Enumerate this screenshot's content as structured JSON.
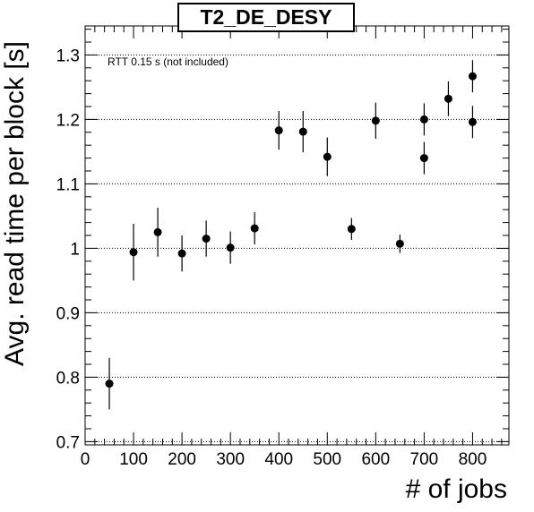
{
  "chart_data": {
    "type": "scatter",
    "title": "T2_DE_DESY",
    "xlabel": "# of jobs",
    "ylabel": "Avg. read time per block [s]",
    "annotation": "RTT 0.15 s (not included)",
    "xlim": [
      0,
      875
    ],
    "ylim": [
      0.695,
      1.345
    ],
    "x_ticks": [
      0,
      100,
      200,
      300,
      400,
      500,
      600,
      700,
      800
    ],
    "y_ticks": [
      0.7,
      0.8,
      0.9,
      1.0,
      1.1,
      1.2,
      1.3
    ],
    "y_tick_labels": [
      "0.7",
      "0.8",
      "0.9",
      "1",
      "1.1",
      "1.2",
      "1.3"
    ],
    "grid": "horizontal dotted at major y ticks",
    "marker_color": "#000000",
    "points": [
      {
        "x": 50,
        "y": 0.79,
        "err": 0.04
      },
      {
        "x": 100,
        "y": 0.994,
        "err": 0.044
      },
      {
        "x": 150,
        "y": 1.025,
        "err": 0.038
      },
      {
        "x": 200,
        "y": 0.992,
        "err": 0.028
      },
      {
        "x": 250,
        "y": 1.015,
        "err": 0.028
      },
      {
        "x": 300,
        "y": 1.001,
        "err": 0.025
      },
      {
        "x": 350,
        "y": 1.031,
        "err": 0.025
      },
      {
        "x": 400,
        "y": 1.183,
        "err": 0.03
      },
      {
        "x": 450,
        "y": 1.181,
        "err": 0.032
      },
      {
        "x": 500,
        "y": 1.142,
        "err": 0.03
      },
      {
        "x": 550,
        "y": 1.03,
        "err": 0.017
      },
      {
        "x": 600,
        "y": 1.198,
        "err": 0.028
      },
      {
        "x": 650,
        "y": 1.007,
        "err": 0.014
      },
      {
        "x": 700,
        "y": 1.2,
        "err": 0.025
      },
      {
        "x": 700,
        "y": 1.14,
        "err": 0.025
      },
      {
        "x": 750,
        "y": 1.232,
        "err": 0.027
      },
      {
        "x": 800,
        "y": 1.267,
        "err": 0.025
      },
      {
        "x": 800,
        "y": 1.196,
        "err": 0.025
      }
    ]
  }
}
